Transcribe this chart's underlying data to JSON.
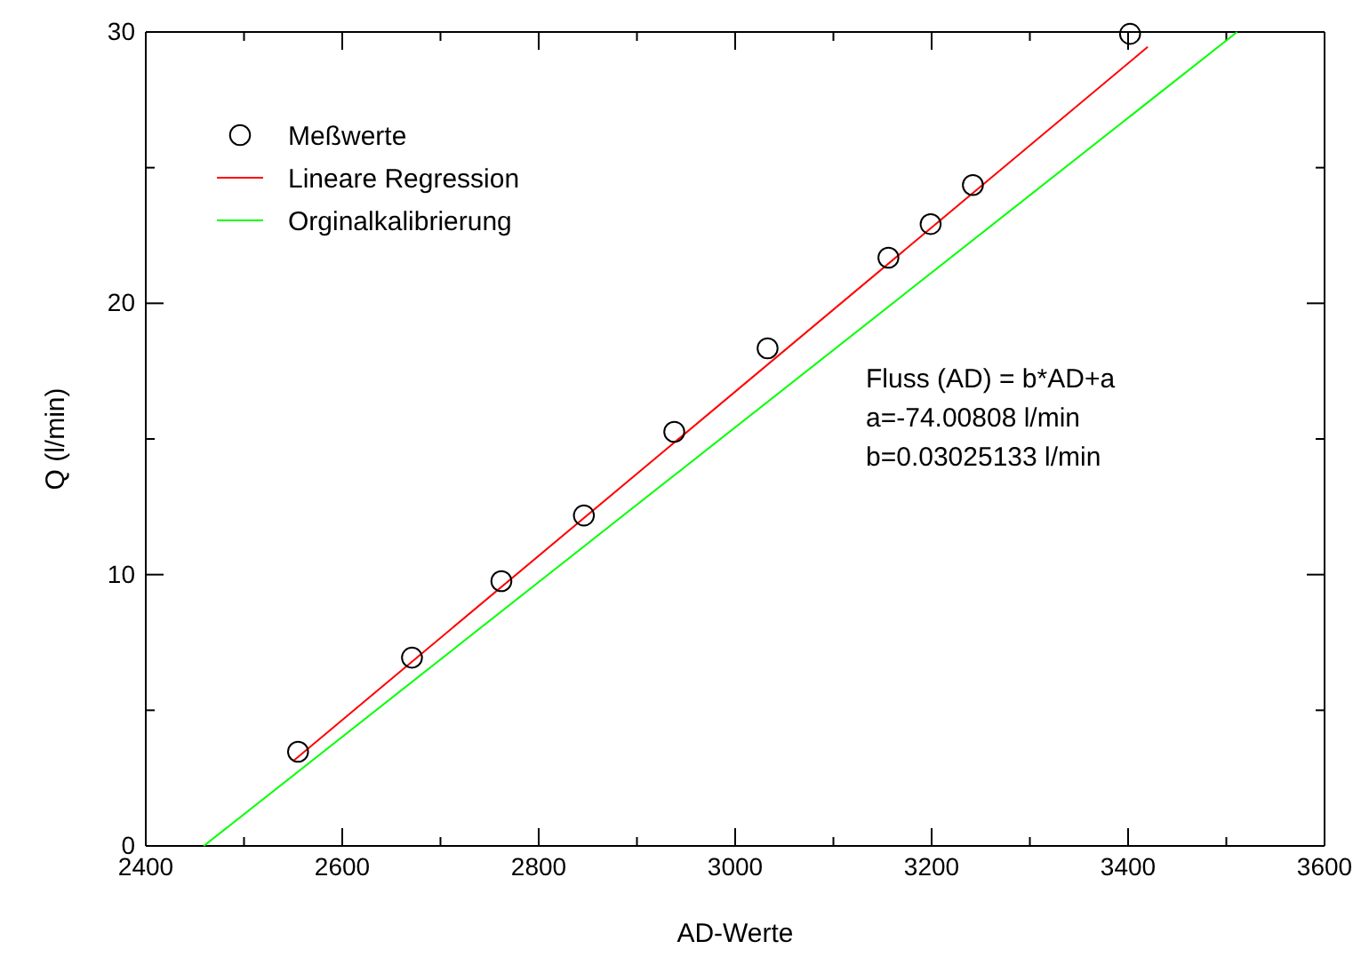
{
  "chart_data": {
    "type": "scatter",
    "xlabel": "AD-Werte",
    "ylabel": "Q (l/min)",
    "xlim": [
      2400,
      3600
    ],
    "ylim": [
      0,
      30
    ],
    "xticks": [
      2400,
      {
        "value": 2500,
        "label": null
      },
      2600,
      {
        "value": 2700,
        "label": null
      },
      2800,
      {
        "value": 2900,
        "label": null
      },
      3000,
      {
        "value": 3100,
        "label": null
      },
      3200,
      {
        "value": 3300,
        "label": null
      },
      3400,
      {
        "value": 3500,
        "label": null
      },
      3600
    ],
    "yticks": [
      0,
      {
        "value": 5,
        "label": null
      },
      10,
      {
        "value": 15,
        "label": null
      },
      20,
      {
        "value": 25,
        "label": null
      },
      30
    ],
    "grid": false,
    "legend": "top left",
    "series": [
      {
        "name": "Meßwerte",
        "marker": "circle",
        "color": "#000000",
        "x": [
          2555,
          2671,
          2762,
          2846,
          2938,
          3033,
          3156,
          3199,
          3242,
          3402
        ],
        "values": [
          3.47,
          6.94,
          9.76,
          12.18,
          15.26,
          18.34,
          21.68,
          22.92,
          24.36,
          29.93
        ]
      },
      {
        "name": "Lineare Regression",
        "type": "line",
        "marker": "none",
        "color": "#ff0000",
        "x": [
          2550,
          3420
        ],
        "values": [
          3.13,
          29.45
        ]
      },
      {
        "name": "Orginalkalibrierung",
        "type": "line",
        "marker": "none",
        "color": "#00ff00",
        "x": [
          2459,
          3511
        ],
        "values": [
          0,
          30
        ]
      }
    ],
    "annotations": [
      "Fluss (AD) = b*AD+a",
      "a=-74.00808 l/min",
      "b=0.03025133 l/min"
    ]
  }
}
